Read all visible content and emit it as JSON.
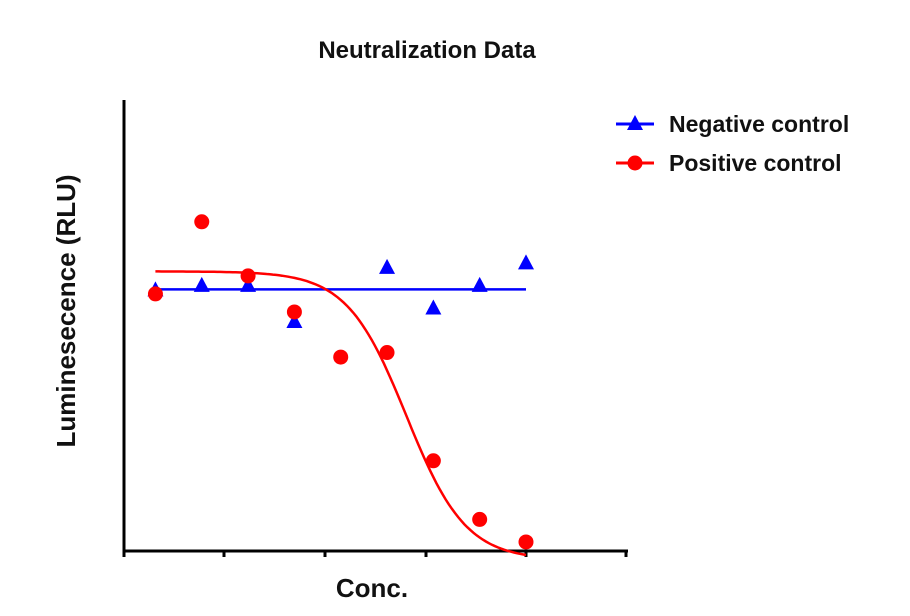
{
  "chart_data": {
    "type": "scatter",
    "title": "Neutralization Data",
    "xlabel": "Conc.",
    "ylabel": "Luminesecence (RLU)",
    "xlim": [
      0,
      10
    ],
    "ylim": [
      0,
      100
    ],
    "x_ticks_labeled": false,
    "y_ticks_labeled": false,
    "grid": false,
    "legend_position": "top-right",
    "series": [
      {
        "name": "Negative control",
        "color": "#0000ff",
        "marker": "triangle",
        "fit": "horizontal line",
        "fit_value": 58,
        "points": [
          {
            "x": 0.4,
            "y": 58
          },
          {
            "x": 1.6,
            "y": 59
          },
          {
            "x": 2.8,
            "y": 59
          },
          {
            "x": 4.0,
            "y": 51
          },
          {
            "x": 6.4,
            "y": 63
          },
          {
            "x": 7.6,
            "y": 54
          },
          {
            "x": 8.8,
            "y": 59
          },
          {
            "x": 10.0,
            "y": 64
          }
        ]
      },
      {
        "name": "Positive control",
        "color": "#ff0000",
        "marker": "circle",
        "fit": "sigmoidal",
        "fit_params": {
          "top": 62,
          "bottom": -2,
          "x50": 6.9,
          "slope": 1.3
        },
        "points": [
          {
            "x": 0.4,
            "y": 57
          },
          {
            "x": 1.6,
            "y": 73
          },
          {
            "x": 2.8,
            "y": 61
          },
          {
            "x": 4.0,
            "y": 53
          },
          {
            "x": 5.2,
            "y": 43
          },
          {
            "x": 6.4,
            "y": 44
          },
          {
            "x": 7.6,
            "y": 20
          },
          {
            "x": 8.8,
            "y": 7
          },
          {
            "x": 10.0,
            "y": 2
          }
        ]
      }
    ]
  }
}
